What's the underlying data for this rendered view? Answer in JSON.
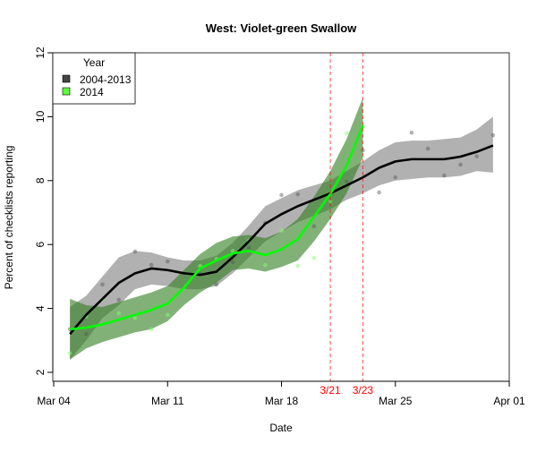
{
  "chart_data": {
    "type": "line",
    "title": "West: Violet-green Swallow",
    "xlabel": "Date",
    "ylabel": "Percent of checklists reporting",
    "x_ticks": [
      "Mar 04",
      "Mar 11",
      "Mar 18",
      "Mar 25",
      "Apr 01"
    ],
    "x_tick_days": [
      0,
      7,
      14,
      21,
      28
    ],
    "y_ticks": [
      2,
      4,
      6,
      8,
      10,
      12
    ],
    "ylim": [
      1.7,
      12
    ],
    "grid": false,
    "legend": {
      "title": "Year",
      "placement": "top-left"
    },
    "markers": [
      {
        "label": "3/21",
        "day": 17,
        "color": "#ff0000"
      },
      {
        "label": "3/23",
        "day": 19,
        "color": "#ff0000"
      }
    ],
    "series": [
      {
        "name": "2004-2013",
        "color": "#000000",
        "band_color": "#a9a9a9",
        "days": [
          1,
          2,
          3,
          4,
          5,
          6,
          7,
          8,
          9,
          10,
          11,
          12,
          13,
          14,
          15,
          16,
          17,
          18,
          19,
          20,
          21,
          22,
          23,
          24,
          25,
          26,
          27
        ],
        "values": [
          3.2,
          3.8,
          4.3,
          4.8,
          5.1,
          5.25,
          5.2,
          5.1,
          5.05,
          5.15,
          5.6,
          6.1,
          6.65,
          6.95,
          7.2,
          7.4,
          7.6,
          7.85,
          8.1,
          8.4,
          8.6,
          8.67,
          8.67,
          8.67,
          8.75,
          8.9,
          9.1
        ],
        "upper": [
          4.05,
          4.4,
          5.0,
          5.6,
          5.8,
          5.75,
          5.6,
          5.5,
          5.5,
          5.65,
          6.05,
          6.6,
          7.2,
          7.45,
          7.7,
          7.85,
          8.0,
          8.3,
          8.6,
          8.95,
          9.2,
          9.25,
          9.25,
          9.3,
          9.35,
          9.6,
          10.0
        ],
        "lower": [
          2.4,
          3.0,
          3.7,
          4.1,
          4.6,
          4.75,
          4.7,
          4.6,
          4.6,
          4.7,
          5.1,
          5.6,
          6.1,
          6.4,
          6.7,
          6.9,
          7.1,
          7.4,
          7.6,
          7.85,
          8.0,
          8.05,
          8.1,
          8.1,
          8.15,
          8.3,
          8.25
        ],
        "points": [
          3.35,
          3.2,
          4.75,
          4.27,
          5.78,
          5.36,
          5.47,
          4.6,
          5.08,
          4.75,
          5.45,
          5.9,
          6.68,
          7.55,
          7.57,
          6.57,
          7.35,
          7.97,
          8.95,
          7.63,
          8.1,
          9.5,
          9.0,
          8.16,
          8.5,
          8.76,
          9.42
        ]
      },
      {
        "name": "2014",
        "color": "#00ff00",
        "band_color": "#2e7d1e",
        "days": [
          1,
          2,
          3,
          4,
          5,
          6,
          7,
          8,
          9,
          10,
          11,
          12,
          13,
          14,
          15,
          16,
          17,
          18,
          19
        ],
        "values": [
          3.35,
          3.4,
          3.5,
          3.65,
          3.8,
          3.95,
          4.15,
          4.65,
          5.25,
          5.5,
          5.72,
          5.8,
          5.67,
          5.85,
          6.17,
          6.87,
          7.58,
          8.47,
          9.73
        ],
        "upper": [
          4.3,
          4.1,
          4.05,
          4.2,
          4.35,
          4.5,
          4.7,
          5.2,
          5.7,
          6.05,
          6.25,
          6.3,
          6.2,
          6.4,
          6.8,
          7.5,
          8.3,
          9.3,
          10.6
        ],
        "lower": [
          2.4,
          2.75,
          2.95,
          3.1,
          3.25,
          3.35,
          3.6,
          4.1,
          4.5,
          4.8,
          5.2,
          5.25,
          5.15,
          5.3,
          5.5,
          6.1,
          6.8,
          7.6,
          8.7
        ],
        "points": [
          2.6,
          3.75,
          4.27,
          3.85,
          3.7,
          3.35,
          3.8,
          4.6,
          5.33,
          5.55,
          5.8,
          6.12,
          5.36,
          6.44,
          5.33,
          5.58,
          7.35,
          9.48,
          9.7
        ]
      }
    ]
  }
}
